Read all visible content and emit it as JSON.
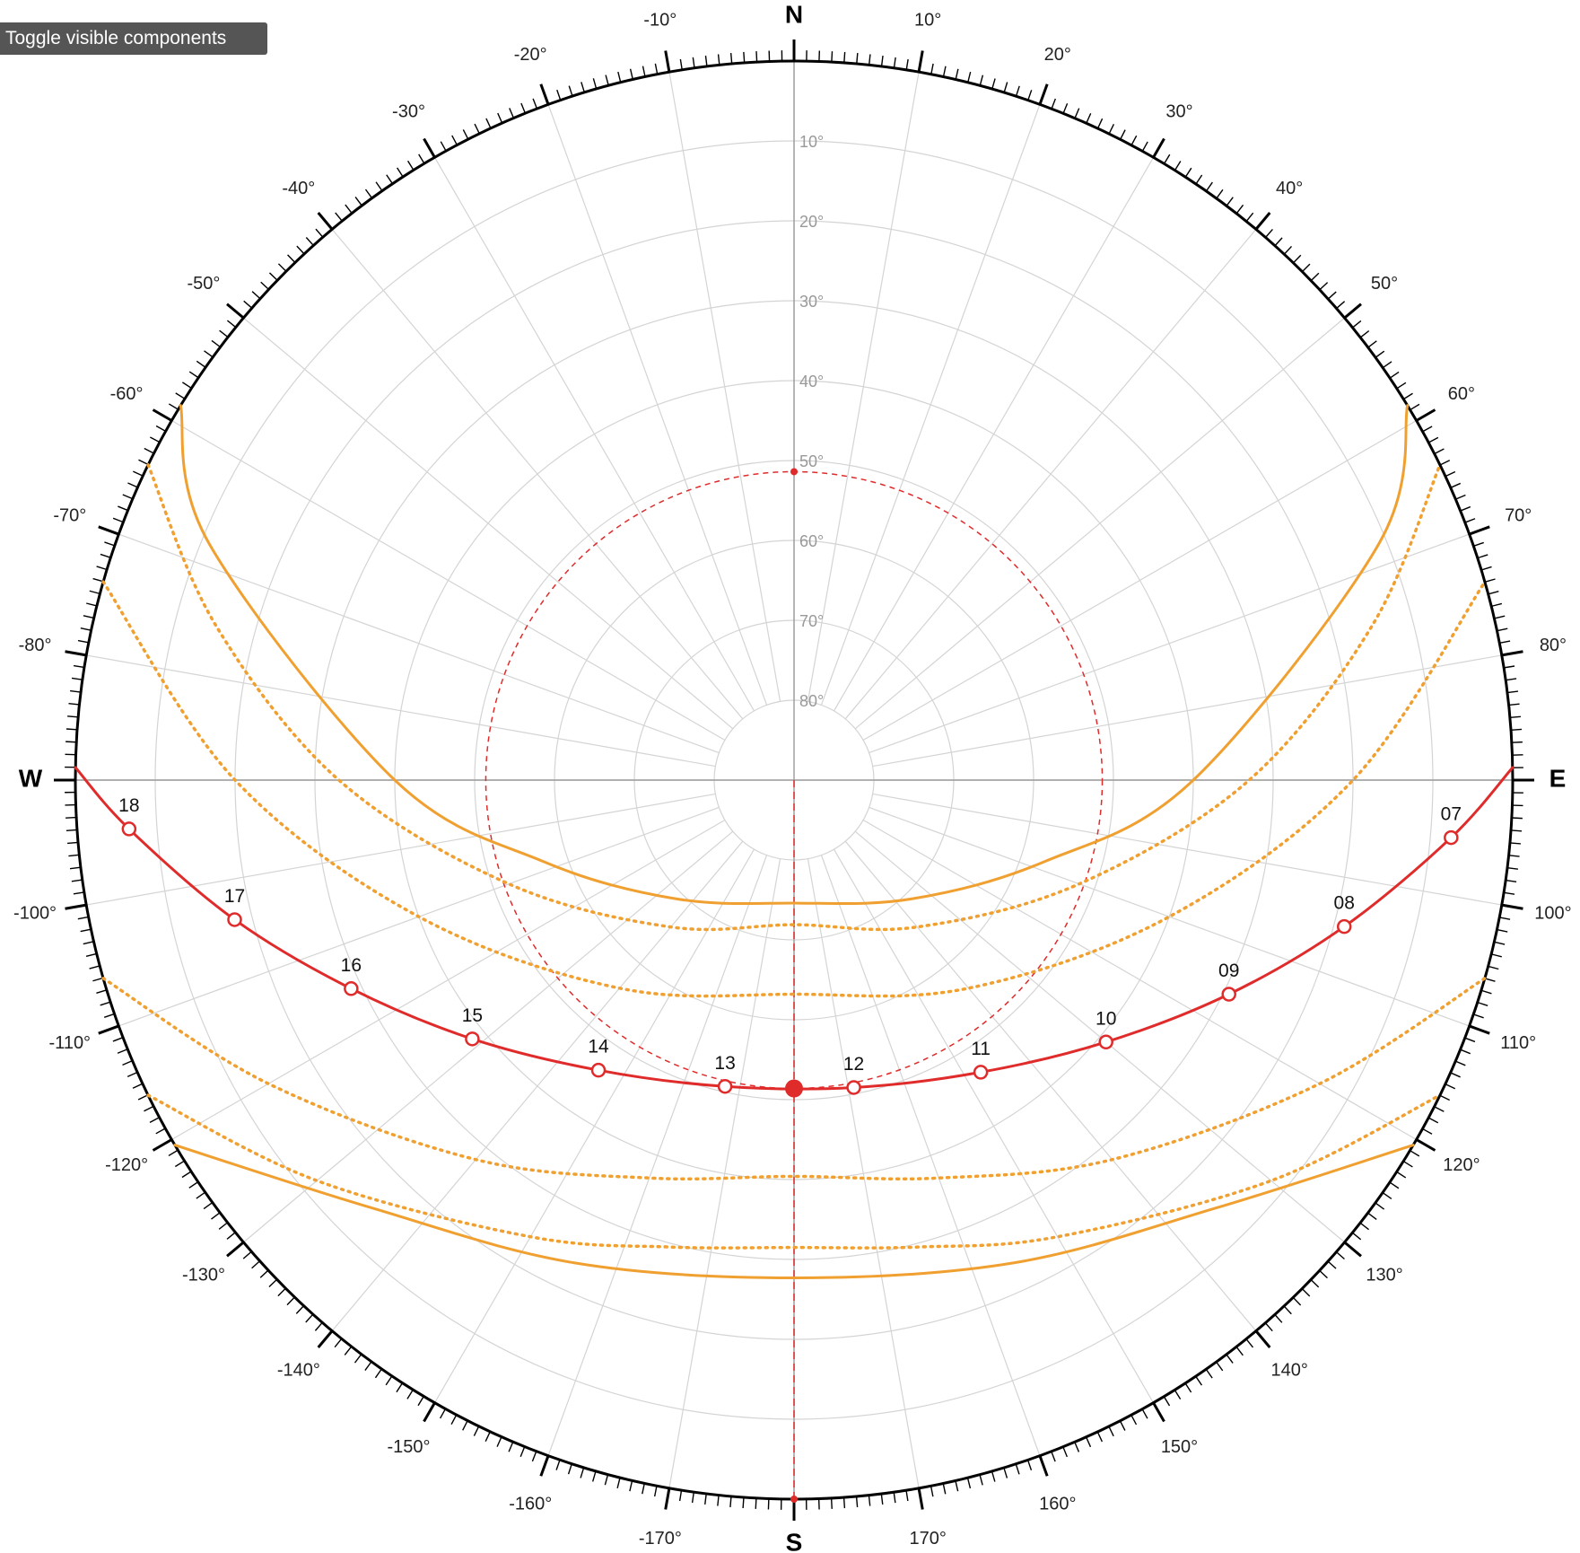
{
  "button": "Toggle visible components",
  "chart_data": {
    "type": "polar",
    "xlim": [
      -180,
      180
    ],
    "xticks": [
      {
        "value": 0,
        "label": "N"
      },
      {
        "value": 10,
        "label": "10°"
      },
      {
        "value": 20,
        "label": "20°"
      },
      {
        "value": 30,
        "label": "30°"
      },
      {
        "value": 40,
        "label": "40°"
      },
      {
        "value": 50,
        "label": "50°"
      },
      {
        "value": 60,
        "label": "60°"
      },
      {
        "value": 70,
        "label": "70°"
      },
      {
        "value": 80,
        "label": "80°"
      },
      {
        "value": 90,
        "label": "E"
      },
      {
        "value": 100,
        "label": "100°"
      },
      {
        "value": 110,
        "label": "110°"
      },
      {
        "value": 120,
        "label": "120°"
      },
      {
        "value": 130,
        "label": "130°"
      },
      {
        "value": 140,
        "label": "140°"
      },
      {
        "value": 150,
        "label": "150°"
      },
      {
        "value": 160,
        "label": "160°"
      },
      {
        "value": 170,
        "label": "170°"
      },
      {
        "value": 180,
        "label": "S"
      },
      {
        "value": -170,
        "label": "-170°"
      },
      {
        "value": -160,
        "label": "-160°"
      },
      {
        "value": -150,
        "label": "-150°"
      },
      {
        "value": -140,
        "label": "-140°"
      },
      {
        "value": -130,
        "label": "-130°"
      },
      {
        "value": -120,
        "label": "-120°"
      },
      {
        "value": -110,
        "label": "-110°"
      },
      {
        "value": -100,
        "label": "-100°"
      },
      {
        "value": -90,
        "label": "W"
      },
      {
        "value": -80,
        "label": "-80°"
      },
      {
        "value": -70,
        "label": "-70°"
      },
      {
        "value": -60,
        "label": "-60°"
      },
      {
        "value": -50,
        "label": "-50°"
      },
      {
        "value": -40,
        "label": "-40°"
      },
      {
        "value": -30,
        "label": "-30°"
      },
      {
        "value": -20,
        "label": "-20°"
      },
      {
        "value": -10,
        "label": "-10°"
      }
    ],
    "ylim": [
      0,
      90
    ],
    "yticks": [
      {
        "value": 10,
        "label": "10°"
      },
      {
        "value": 20,
        "label": "20°"
      },
      {
        "value": 30,
        "label": "30°"
      },
      {
        "value": 40,
        "label": "40°"
      },
      {
        "value": 50,
        "label": "50°"
      },
      {
        "value": 60,
        "label": "60°"
      },
      {
        "value": 70,
        "label": "70°"
      },
      {
        "value": 80,
        "label": "80°"
      }
    ],
    "grid": true,
    "series": [
      {
        "color": "#f0a030",
        "style": "solid",
        "x": [
          -58.6,
          -68,
          -90,
          -108,
          -135,
          180,
          135,
          108,
          90,
          68,
          58.6
        ],
        "values": [
          0,
          11,
          40,
          57,
          69,
          74.6,
          69,
          57,
          40,
          11,
          0
        ]
      },
      {
        "color": "#f0a030",
        "style": "dotted",
        "x": [
          -64,
          -75,
          -90,
          -110,
          -140,
          180,
          140,
          110,
          90,
          75,
          64
        ],
        "values": [
          0,
          15,
          33,
          52,
          66,
          71.9,
          66,
          52,
          33,
          15,
          0
        ]
      },
      {
        "color": "#f0a030",
        "style": "dotted",
        "x": [
          -74,
          -90,
          -110,
          -140,
          180,
          140,
          110,
          90,
          74
        ],
        "values": [
          0,
          20,
          40,
          56,
          63.2,
          56,
          40,
          20,
          0
        ]
      },
      {
        "color": "#f0a030",
        "style": "dotted",
        "x": [
          -106,
          -120,
          -140,
          -160,
          180,
          160,
          140,
          120,
          106
        ],
        "values": [
          0,
          14,
          28,
          37,
          40.4,
          37,
          28,
          14,
          0
        ]
      },
      {
        "color": "#f0a030",
        "style": "dotted",
        "x": [
          -116,
          -130,
          -150,
          -165,
          180,
          165,
          150,
          130,
          116
        ],
        "values": [
          0,
          12,
          24,
          29.5,
          31.5,
          29.5,
          24,
          12,
          0
        ]
      },
      {
        "color": "#f0a030",
        "style": "solid",
        "x": [
          -120.5,
          -135.3,
          -155.5,
          180,
          155.5,
          135.3,
          120.5
        ],
        "values": [
          0,
          14.7,
          23.6,
          27.7,
          23.6,
          14.7,
          0
        ]
      },
      {
        "color": "#e02b2b",
        "style": "solid",
        "markers": true,
        "categories": [
          null,
          "07",
          "08",
          "09",
          "10",
          "11",
          "12",
          "13",
          "14",
          "15",
          "16",
          "17",
          "18",
          null
        ],
        "x": [
          89,
          95,
          104.9,
          116.2,
          130,
          147.4,
          169,
          -167.3,
          -146,
          -128.8,
          -115.2,
          -104,
          -94.2,
          -89
        ],
        "values": [
          0,
          7.4,
          18.7,
          29.3,
          39,
          46.6,
          50.8,
          50.7,
          46.2,
          38.3,
          28.7,
          17.8,
          6.5,
          0
        ]
      }
    ],
    "sun": {
      "x": 180,
      "value": 51.4,
      "color": "#e02b2b"
    }
  }
}
